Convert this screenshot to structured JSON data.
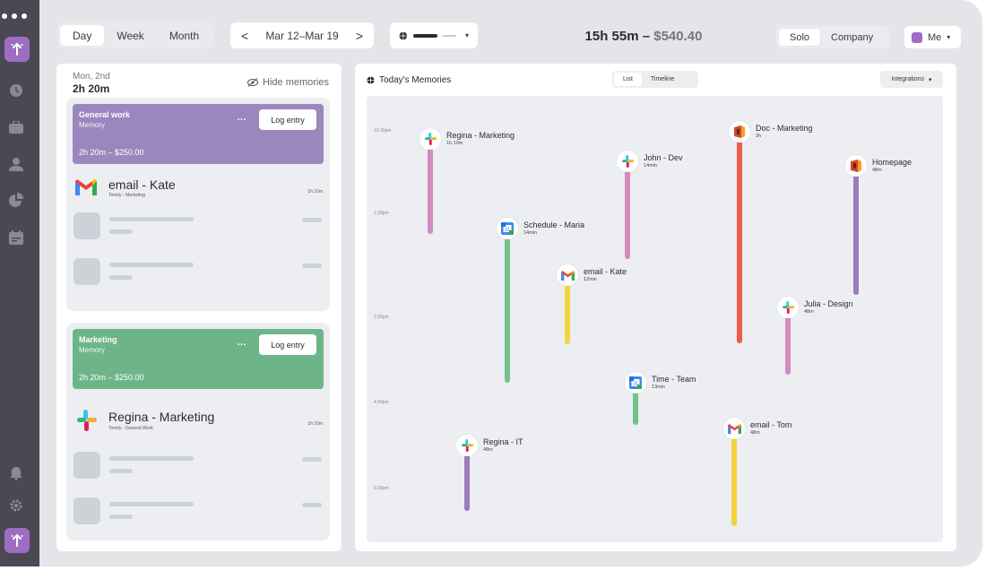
{
  "rail": {
    "icons": [
      "logo-icon",
      "clock-icon",
      "briefcase-icon",
      "person-icon",
      "pie-chart-icon",
      "calendar-icon",
      "bell-icon",
      "gear-icon",
      "logo-icon"
    ]
  },
  "topbar": {
    "views": [
      "Day",
      "Week",
      "Month"
    ],
    "active_view": "Day",
    "date_range": "Mar 12–Mar 19",
    "prev": "<",
    "next": ">",
    "total_time": "15h 55m",
    "total_sep": " – ",
    "total_money": "$540.40",
    "scope": [
      "Solo",
      "Company"
    ],
    "active_scope": "Solo",
    "user": "Me",
    "caret": "▾"
  },
  "left": {
    "date": "Mon, 2nd",
    "duration": "2h 20m",
    "hide_label": "Hide memories",
    "cards": [
      {
        "title": "General work",
        "subtitle": "Memory",
        "amount": "2h 20m – $250.00",
        "more": "…",
        "log": "Log entry",
        "color": "#9b86bd",
        "entry": {
          "name": "email - Kate",
          "sub": "Timely - Marketing",
          "time": "1h 10m",
          "icon": "gmail-icon"
        }
      },
      {
        "title": "Marketing",
        "subtitle": "Memory",
        "amount": "2h 20m – $250.00",
        "more": "…",
        "log": "Log entry",
        "color": "#6db588",
        "entry": {
          "name": "Regina - Marketing",
          "sub": "Timely - General Work",
          "time": "1h 10m",
          "icon": "slack-icon"
        }
      }
    ]
  },
  "right": {
    "title": "Today's Memories",
    "tabs": [
      "List",
      "Timeline"
    ],
    "active_tab": "List",
    "integrations": "Integrations",
    "time_labels": [
      "12:30pm",
      "1:30pm",
      "2:30pm",
      "4:30pm",
      "6:30pm"
    ],
    "events": [
      {
        "name": "Regina - Marketing",
        "dur": "1h 10m",
        "icon": "slack-icon",
        "color": "#d18bbf"
      },
      {
        "name": "Schedule - Maria",
        "dur": "14min",
        "icon": "calendar-icon",
        "color": "#72c28b"
      },
      {
        "name": "email - Kate",
        "dur": "12min",
        "icon": "gmail-icon",
        "color": "#f5d33d"
      },
      {
        "name": "John - Dev",
        "dur": "14min",
        "icon": "slack-icon",
        "color": "#d18bbf"
      },
      {
        "name": "Time - Team",
        "dur": "13min",
        "icon": "calendar-icon",
        "color": "#72c28b"
      },
      {
        "name": "Doc - Marketing",
        "dur": "2h",
        "icon": "doc-icon",
        "color": "#ec5b4d"
      },
      {
        "name": "Julia - Design",
        "dur": "48m",
        "icon": "slack-icon",
        "color": "#d18bbf"
      },
      {
        "name": "Homepage",
        "dur": "48m",
        "icon": "doc-icon",
        "color": "#9c7cbc"
      },
      {
        "name": "Regina - IT",
        "dur": "48m",
        "icon": "slack-icon",
        "color": "#9c7cbc"
      },
      {
        "name": "email - Tom",
        "dur": "48m",
        "icon": "gmail-icon",
        "color": "#f5d33d"
      }
    ]
  }
}
